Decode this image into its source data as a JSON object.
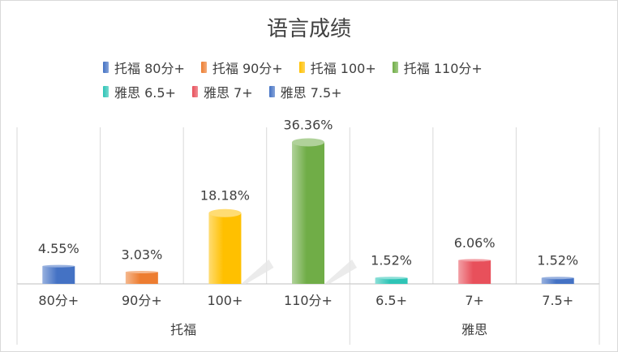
{
  "chart_data": {
    "type": "bar",
    "title": "语言成绩",
    "categories": [
      "80分+",
      "90分+",
      "100+",
      "110分+",
      "6.5+",
      "7+",
      "7.5+"
    ],
    "groups": [
      {
        "label": "托福",
        "count": 4
      },
      {
        "label": "雅思",
        "count": 3
      }
    ],
    "values": [
      4.55,
      3.03,
      18.18,
      36.36,
      1.52,
      6.06,
      1.52
    ],
    "data_labels": [
      "4.55%",
      "3.03%",
      "18.18%",
      "36.36%",
      "1.52%",
      "6.06%",
      "1.52%"
    ],
    "series": [
      {
        "name": "托福 80分+",
        "color": "#4472c4"
      },
      {
        "name": "托福 90分+",
        "color": "#ed7d31"
      },
      {
        "name": "托福 100+",
        "color": "#ffc000"
      },
      {
        "name": "托福 110分+",
        "color": "#70ad47"
      },
      {
        "name": "雅思 6.5+",
        "color": "#2ec4b6"
      },
      {
        "name": "雅思 7+",
        "color": "#e8505b"
      },
      {
        "name": "雅思 7.5+",
        "color": "#4472c4"
      }
    ],
    "legend_position": "top",
    "ylim": [
      0,
      40
    ],
    "grid": false,
    "xlabel": "",
    "ylabel": ""
  }
}
